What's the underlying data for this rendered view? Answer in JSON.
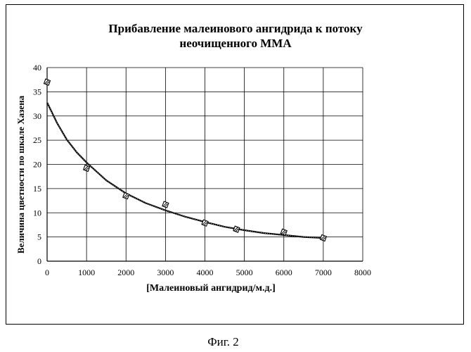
{
  "chart_data": {
    "type": "scatter",
    "title_line1": "Прибавление малеинового ангидрида к потоку",
    "title_line2": "неочищенного ММА",
    "xlabel": "[Малеиновый ангидрид/м.д.]",
    "ylabel": "Величина цветности по шкале Хазена",
    "xlim": [
      0,
      8000
    ],
    "ylim": [
      0,
      40
    ],
    "x_ticks": [
      "0",
      "1000",
      "2000",
      "3000",
      "4000",
      "5000",
      "6000",
      "7000",
      "8000"
    ],
    "y_ticks": [
      "0",
      "5",
      "10",
      "15",
      "20",
      "25",
      "30",
      "35",
      "40"
    ],
    "grid": true,
    "points": [
      {
        "x": 0,
        "y": 37
      },
      {
        "x": 1000,
        "y": 19.2
      },
      {
        "x": 2000,
        "y": 13.5
      },
      {
        "x": 3000,
        "y": 11.7
      },
      {
        "x": 4000,
        "y": 7.9
      },
      {
        "x": 4800,
        "y": 6.6
      },
      {
        "x": 6000,
        "y": 6.0
      },
      {
        "x": 7000,
        "y": 4.8
      }
    ],
    "trendline": {
      "x": [
        0,
        250,
        500,
        750,
        1000,
        1500,
        2000,
        2500,
        3000,
        3500,
        4000,
        4500,
        5000,
        5500,
        6000,
        6500,
        7000
      ],
      "y": [
        32.8,
        28.6,
        25.1,
        22.5,
        20.4,
        16.7,
        14.0,
        12.0,
        10.5,
        9.2,
        8.1,
        7.1,
        6.4,
        5.8,
        5.4,
        5.0,
        4.8
      ]
    }
  },
  "caption": "Фиг. 2"
}
